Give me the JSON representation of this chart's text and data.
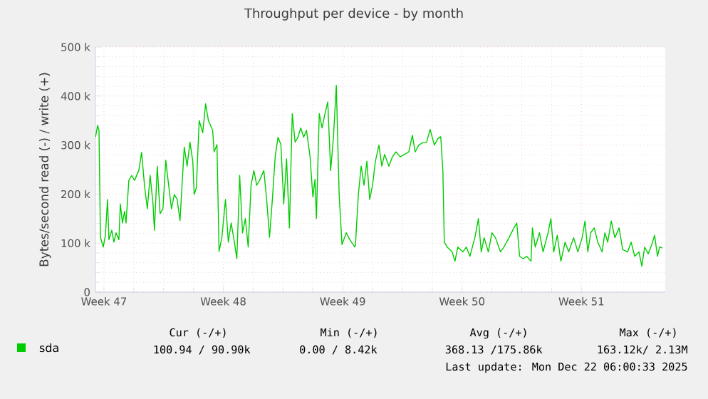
{
  "chart_data": {
    "type": "line",
    "title": "Throughput per device - by month",
    "ylabel": "Bytes/second read (-) / write (+)",
    "xlim": [
      "2025-11-16T12:00",
      "2025-12-19T22:00"
    ],
    "ylim": [
      0,
      500000
    ],
    "xticks": [
      {
        "value": "2025-11-17",
        "label": "Week 47"
      },
      {
        "value": "2025-11-24",
        "label": "Week 48"
      },
      {
        "value": "2025-12-01",
        "label": "Week 49"
      },
      {
        "value": "2025-12-08",
        "label": "Week 50"
      },
      {
        "value": "2025-12-15",
        "label": "Week 51"
      }
    ],
    "yticks": [
      {
        "value": 0,
        "label": "0"
      },
      {
        "value": 100000,
        "label": "100 k"
      },
      {
        "value": 200000,
        "label": "200 k"
      },
      {
        "value": 300000,
        "label": "300 k"
      },
      {
        "value": 400000,
        "label": "400 k"
      },
      {
        "value": 500000,
        "label": "500 k"
      }
    ],
    "grid": true,
    "legend": "bottom left",
    "marker": "none",
    "line_style": "solid",
    "annotations": [
      "Cur (-/+)",
      "Min (-/+)",
      "Avg (-/+)",
      "Max (-/+)",
      "100.94 / 90.90k",
      "0.00 /  8.42k",
      "368.13 /175.86k",
      "163.12k/  2.13M",
      "Last update: Mon Dec 22 06:00:33 2025"
    ],
    "series": [
      {
        "name": "sda",
        "color": "#00cc00",
        "x": [
          "2025-11-16T12:00",
          "2025-11-16T15:00",
          "2025-11-16T17:00",
          "2025-11-16T19:00",
          "2025-11-16T23:00",
          "2025-11-17T02:00",
          "2025-11-17T05:00",
          "2025-11-17T07:00",
          "2025-11-17T11:00",
          "2025-11-17T14:00",
          "2025-11-17T17:00",
          "2025-11-17T21:00",
          "2025-11-17T23:00",
          "2025-11-18T02:00",
          "2025-11-18T05:00",
          "2025-11-18T07:00",
          "2025-11-18T11:00",
          "2025-11-18T15:00",
          "2025-11-18T19:00",
          "2025-11-19T01:00",
          "2025-11-19T05:00",
          "2025-11-19T09:00",
          "2025-11-19T13:00",
          "2025-11-19T17:00",
          "2025-11-19T21:00",
          "2025-11-19T23:00",
          "2025-11-20T03:00",
          "2025-11-20T07:00",
          "2025-11-20T11:00",
          "2025-11-20T15:00",
          "2025-11-20T19:00",
          "2025-11-20T23:00",
          "2025-11-21T03:00",
          "2025-11-21T07:00",
          "2025-11-21T11:00",
          "2025-11-21T17:00",
          "2025-11-21T21:00",
          "2025-11-22T01:00",
          "2025-11-22T05:00",
          "2025-11-22T07:00",
          "2025-11-22T10:00",
          "2025-11-22T14:00",
          "2025-11-22T19:00",
          "2025-11-22T23:00",
          "2025-11-23T03:00",
          "2025-11-23T09:00",
          "2025-11-23T11:00",
          "2025-11-23T15:00",
          "2025-11-23T18:00",
          "2025-11-23T22:00",
          "2025-11-24T03:00",
          "2025-11-24T07:00",
          "2025-11-24T11:00",
          "2025-11-24T15:00",
          "2025-11-24T19:00",
          "2025-11-24T23:00",
          "2025-11-25T03:00",
          "2025-11-25T07:00",
          "2025-11-25T11:00",
          "2025-11-25T15:00",
          "2025-11-25T19:00",
          "2025-11-25T23:00",
          "2025-11-26T03:00",
          "2025-11-26T09:00",
          "2025-11-26T13:00",
          "2025-11-26T17:00",
          "2025-11-26T21:00",
          "2025-11-27T01:00",
          "2025-11-27T05:00",
          "2025-11-27T09:00",
          "2025-11-27T13:00",
          "2025-11-27T17:00",
          "2025-11-27T21:00",
          "2025-11-28T01:00",
          "2025-11-28T05:00",
          "2025-11-28T09:00",
          "2025-11-28T13:00",
          "2025-11-28T17:00",
          "2025-11-28T21:00",
          "2025-11-29T02:00",
          "2025-11-29T06:00",
          "2025-11-29T09:00",
          "2025-11-29T11:00",
          "2025-11-29T15:00",
          "2025-11-29T19:00",
          "2025-11-29T23:00",
          "2025-11-30T03:00",
          "2025-11-30T07:00",
          "2025-11-30T11:00",
          "2025-11-30T15:00",
          "2025-11-30T19:00",
          "2025-11-30T23:00",
          "2025-12-01T05:00",
          "2025-12-01T10:00",
          "2025-12-01T17:00",
          "2025-12-01T18:00",
          "2025-12-01T22:00",
          "2025-12-02T02:00",
          "2025-12-02T06:00",
          "2025-12-02T10:00",
          "2025-12-02T14:00",
          "2025-12-02T18:00",
          "2025-12-02T22:00",
          "2025-12-03T03:00",
          "2025-12-03T07:00",
          "2025-12-03T11:00",
          "2025-12-03T17:00",
          "2025-12-03T22:00",
          "2025-12-04T03:00",
          "2025-12-04T09:00",
          "2025-12-04T15:00",
          "2025-12-04T21:00",
          "2025-12-05T02:00",
          "2025-12-05T06:00",
          "2025-12-05T11:00",
          "2025-12-05T17:00",
          "2025-12-05T22:00",
          "2025-12-06T03:00",
          "2025-12-06T09:00",
          "2025-12-06T14:00",
          "2025-12-06T18:00",
          "2025-12-06T21:00",
          "2025-12-06T23:00",
          "2025-12-07T03:00",
          "2025-12-07T10:00",
          "2025-12-07T14:00",
          "2025-12-07T18:00",
          "2025-12-08T01:00",
          "2025-12-08T06:00",
          "2025-12-08T11:00",
          "2025-12-08T18:00",
          "2025-12-08T23:00",
          "2025-12-09T03:00",
          "2025-12-09T07:00",
          "2025-12-09T13:00",
          "2025-12-09T18:00",
          "2025-12-09T23:00",
          "2025-12-10T06:00",
          "2025-12-10T11:00",
          "2025-12-10T18:00",
          "2025-12-11T01:00",
          "2025-12-11T05:00",
          "2025-12-11T09:00",
          "2025-12-11T14:00",
          "2025-12-11T19:00",
          "2025-12-12T01:00",
          "2025-12-12T03:00",
          "2025-12-12T07:00",
          "2025-12-12T13:00",
          "2025-12-12T18:00",
          "2025-12-13T01:00",
          "2025-12-13T05:00",
          "2025-12-13T09:00",
          "2025-12-13T14:00",
          "2025-12-13T19:00",
          "2025-12-14T01:00",
          "2025-12-14T06:00",
          "2025-12-14T13:00",
          "2025-12-14T19:00",
          "2025-12-15T01:00",
          "2025-12-15T05:00",
          "2025-12-15T09:00",
          "2025-12-15T13:00",
          "2025-12-15T18:00",
          "2025-12-15T23:00",
          "2025-12-16T05:00",
          "2025-12-16T09:00",
          "2025-12-16T13:00",
          "2025-12-16T18:00",
          "2025-12-16T23:00",
          "2025-12-17T05:00",
          "2025-12-17T10:00",
          "2025-12-17T17:00",
          "2025-12-17T22:00",
          "2025-12-18T03:00",
          "2025-12-18T09:00",
          "2025-12-18T13:00",
          "2025-12-18T17:00",
          "2025-12-18T22:00",
          "2025-12-19T03:00",
          "2025-12-19T07:00",
          "2025-12-19T11:00",
          "2025-12-19T14:00",
          "2025-12-19T18:00"
        ],
        "values": [
          316000,
          340000,
          330000,
          112000,
          92000,
          116000,
          189000,
          107000,
          126000,
          102000,
          121000,
          107000,
          180000,
          141000,
          165000,
          141000,
          228000,
          238000,
          228000,
          248000,
          285000,
          218000,
          170000,
          238000,
          180000,
          126000,
          257000,
          160000,
          170000,
          269000,
          218000,
          170000,
          199000,
          189000,
          146000,
          296000,
          257000,
          306000,
          267000,
          199000,
          213000,
          350000,
          325000,
          384000,
          350000,
          330000,
          286000,
          301000,
          83000,
          112000,
          189000,
          102000,
          141000,
          107000,
          68000,
          238000,
          121000,
          150000,
          92000,
          218000,
          248000,
          218000,
          228000,
          248000,
          189000,
          112000,
          189000,
          277000,
          316000,
          301000,
          180000,
          272000,
          131000,
          364000,
          306000,
          316000,
          335000,
          316000,
          330000,
          277000,
          194000,
          230000,
          150000,
          364000,
          335000,
          364000,
          388000,
          248000,
          316000,
          422000,
          199000,
          97000,
          121000,
          107000,
          92000,
          97000,
          199000,
          257000,
          218000,
          267000,
          189000,
          218000,
          267000,
          300000,
          257000,
          281000,
          257000,
          276000,
          286000,
          276000,
          281000,
          286000,
          320000,
          286000,
          300000,
          305000,
          305000,
          332000,
          300000,
          313000,
          317000,
          247000,
          102000,
          92000,
          82000,
          63000,
          92000,
          82000,
          92000,
          73000,
          111000,
          150000,
          82000,
          111000,
          82000,
          121000,
          111000,
          82000,
          92000,
          111000,
          131000,
          141000,
          73000,
          68000,
          73000,
          63000,
          131000,
          92000,
          121000,
          82000,
          121000,
          150000,
          82000,
          116000,
          63000,
          102000,
          82000,
          111000,
          82000,
          111000,
          145000,
          82000,
          121000,
          131000,
          102000,
          82000,
          121000,
          102000,
          145000,
          111000,
          131000,
          87000,
          82000,
          102000,
          73000,
          82000,
          53000,
          92000,
          78000,
          97000,
          116000,
          73000,
          92000,
          90000
        ]
      }
    ]
  }
}
